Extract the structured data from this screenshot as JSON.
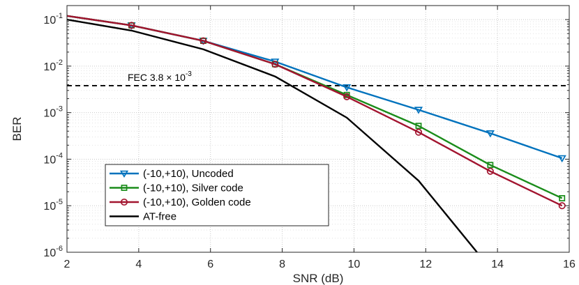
{
  "chart_data": {
    "type": "line",
    "xlabel": "SNR (dB)",
    "ylabel": "BER",
    "xlim": [
      2,
      16
    ],
    "ylim": [
      1e-06,
      0.2
    ],
    "yscale": "log",
    "grid": true,
    "xticks": [
      2,
      4,
      6,
      8,
      10,
      12,
      14,
      16
    ],
    "xtick_labels": [
      "2",
      "4",
      "6",
      "8",
      "10",
      "12",
      "14",
      "16"
    ],
    "yticks": [
      {
        "value": 0.1,
        "base": "10",
        "exp": "-1"
      },
      {
        "value": 0.01,
        "base": "10",
        "exp": "-2"
      },
      {
        "value": 0.001,
        "base": "10",
        "exp": "-3"
      },
      {
        "value": 0.0001,
        "base": "10",
        "exp": "-4"
      },
      {
        "value": 1e-05,
        "base": "10",
        "exp": "-5"
      },
      {
        "value": 1e-06,
        "base": "10",
        "exp": "-6"
      }
    ],
    "legend_position": "bottom-left",
    "series": [
      {
        "name": "(-10,+10), Uncoded",
        "color": "#0072BD",
        "marker": "triangle-down",
        "x": [
          2,
          3.8,
          5.8,
          7.8,
          9.8,
          11.8,
          13.8,
          15.8
        ],
        "y": [
          0.12,
          0.075,
          0.035,
          0.0125,
          0.0035,
          0.00115,
          0.00036,
          0.000105
        ]
      },
      {
        "name": "(-10,+10), Silver code",
        "color": "#1A8C1A",
        "marker": "square",
        "x": [
          2,
          3.8,
          5.8,
          7.8,
          9.8,
          11.8,
          13.8,
          15.8
        ],
        "y": [
          0.12,
          0.075,
          0.035,
          0.011,
          0.0024,
          0.00052,
          7.5e-05,
          1.45e-05
        ]
      },
      {
        "name": "(-10,+10), Golden code",
        "color": "#A2142F",
        "marker": "circle",
        "x": [
          2,
          3.8,
          5.8,
          7.8,
          9.8,
          11.8,
          13.8,
          15.8
        ],
        "y": [
          0.12,
          0.075,
          0.035,
          0.011,
          0.0022,
          0.00038,
          5.5e-05,
          1e-05
        ]
      },
      {
        "name": "AT-free",
        "color": "#000000",
        "marker": "none",
        "x": [
          2,
          3.8,
          5.8,
          7.8,
          9.8,
          11.8,
          13.43
        ],
        "y": [
          0.1,
          0.058,
          0.023,
          0.006,
          0.00078,
          3.45e-05,
          1e-06
        ]
      }
    ],
    "annotation": {
      "value": 0.0038,
      "label_prefix": "FEC  3.8 ",
      "label_times": "×",
      "label_base": " 10",
      "label_exp": "-3",
      "style": "dashed"
    }
  }
}
